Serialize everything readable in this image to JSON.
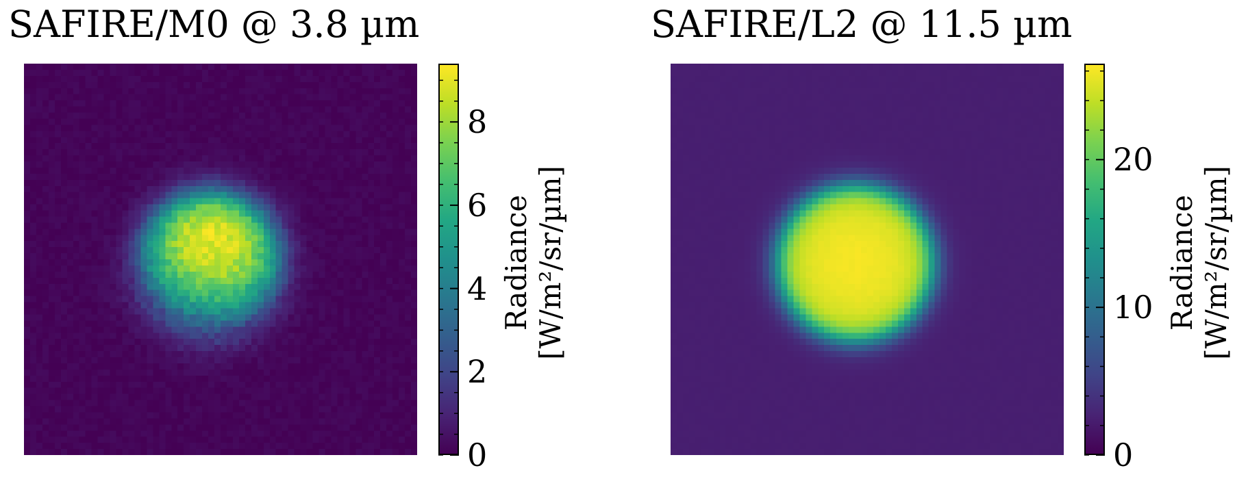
{
  "chart_data": [
    {
      "type": "heatmap",
      "title": "SAFIRE/M0 @ 3.8 µm",
      "colormap": "viridis",
      "colorbar": {
        "label_line1": "Radiance",
        "label_line2": "[W/m²/sr/µm]",
        "range": [
          0,
          9.4
        ],
        "ticks": [
          0,
          2,
          4,
          6,
          8
        ],
        "tick_labels": [
          "0",
          "2",
          "4",
          "6",
          "8"
        ]
      },
      "grid": {
        "cells": 64,
        "background": 0.1,
        "source": {
          "shape": "disk",
          "center": [
            0.47,
            0.52
          ],
          "radius": 0.19,
          "peak_offset": [
            0.02,
            -0.09
          ],
          "peak": 9.2,
          "edge": 3.0
        }
      }
    },
    {
      "type": "heatmap",
      "title": "SAFIRE/L2 @ 11.5 µm",
      "colormap": "viridis",
      "colorbar": {
        "label_line1": "Radiance",
        "label_line2": "[W/m²/sr/µm]",
        "range": [
          0,
          26.5
        ],
        "ticks": [
          0,
          10,
          20
        ],
        "tick_labels": [
          "0",
          "10",
          "20"
        ]
      },
      "grid": {
        "cells": 64,
        "background": 2.3,
        "source": {
          "shape": "disk",
          "center": [
            0.47,
            0.51
          ],
          "radius": 0.2,
          "peak_offset": [
            0.0,
            0.0
          ],
          "peak": 26.2,
          "edge": 22.0
        }
      }
    }
  ]
}
